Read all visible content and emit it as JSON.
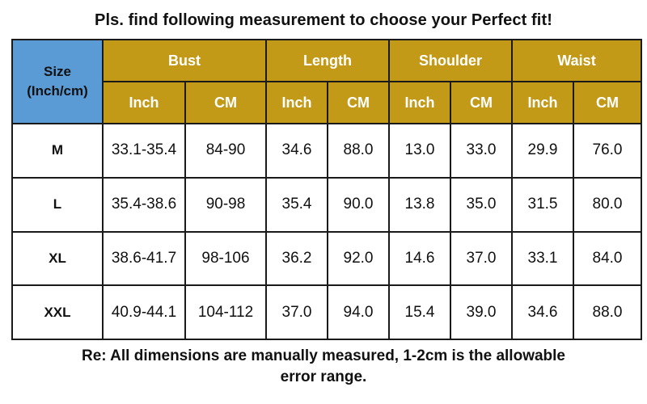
{
  "title": "Pls. find following measurement to choose your Perfect fit!",
  "header": {
    "size_label_line1": "Size",
    "size_label_line2": "(Inch/cm)",
    "groups": [
      "Bust",
      "Length",
      "Shoulder",
      "Waist"
    ],
    "units": [
      "Inch",
      "CM",
      "Inch",
      "CM",
      "Inch",
      "CM",
      "Inch",
      "CM"
    ]
  },
  "rows": [
    {
      "size": "M",
      "values": [
        "33.1-35.4",
        "84-90",
        "34.6",
        "88.0",
        "13.0",
        "33.0",
        "29.9",
        "76.0"
      ]
    },
    {
      "size": "L",
      "values": [
        "35.4-38.6",
        "90-98",
        "35.4",
        "90.0",
        "13.8",
        "35.0",
        "31.5",
        "80.0"
      ]
    },
    {
      "size": "XL",
      "values": [
        "38.6-41.7",
        "98-106",
        "36.2",
        "92.0",
        "14.6",
        "37.0",
        "33.1",
        "84.0"
      ]
    },
    {
      "size": "XXL",
      "values": [
        "40.9-44.1",
        "104-112",
        "37.0",
        "94.0",
        "15.4",
        "39.0",
        "34.6",
        "88.0"
      ]
    }
  ],
  "note": {
    "line1": "Re: All dimensions are manually measured, 1-2cm is the allowable",
    "line2": "error range."
  },
  "colors": {
    "size_header_bg": "#5b9bd5",
    "header_bg": "#c29a17",
    "header_text": "#ffffff",
    "border": "#1a1a1a"
  }
}
